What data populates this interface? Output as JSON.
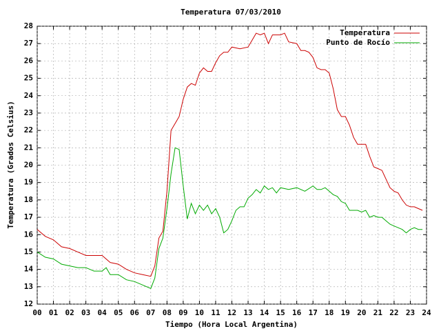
{
  "chart_data": {
    "type": "line",
    "title": "Temperatura 07/03/2010",
    "x_label": "Tiempo (Hora Local Argentina)",
    "y_label": "Temperatura (Grados Celsius)",
    "xlim": [
      0,
      24
    ],
    "ylim": [
      12,
      28
    ],
    "grid": true,
    "legend": "top-right",
    "xticks": [
      {
        "value": 0,
        "label": "00"
      },
      {
        "value": 1,
        "label": "01"
      },
      {
        "value": 2,
        "label": "02"
      },
      {
        "value": 3,
        "label": "03"
      },
      {
        "value": 4,
        "label": "04"
      },
      {
        "value": 5,
        "label": "05"
      },
      {
        "value": 6,
        "label": "06"
      },
      {
        "value": 7,
        "label": "07"
      },
      {
        "value": 8,
        "label": "08"
      },
      {
        "value": 9,
        "label": "09"
      },
      10,
      11,
      12,
      13,
      14,
      15,
      16,
      17,
      18,
      19,
      20,
      21,
      22,
      23,
      24
    ],
    "yticks": [
      12,
      13,
      14,
      15,
      16,
      17,
      18,
      19,
      20,
      21,
      22,
      23,
      24,
      25,
      26,
      27,
      28
    ],
    "series": [
      {
        "name": "Temperatura",
        "color": "#cc0000",
        "x": [
          0,
          0.5,
          1,
          1.5,
          2,
          2.5,
          3,
          3.5,
          4,
          4.5,
          5,
          5.5,
          6,
          6.5,
          7,
          7.25,
          7.5,
          7.75,
          8,
          8.25,
          8.5,
          8.75,
          9,
          9.25,
          9.5,
          9.75,
          10,
          10.25,
          10.5,
          10.75,
          11,
          11.25,
          11.5,
          11.75,
          12,
          12.5,
          13,
          13.25,
          13.5,
          13.75,
          14,
          14.25,
          14.5,
          14.75,
          15,
          15.25,
          15.5,
          16,
          16.25,
          16.5,
          16.75,
          17,
          17.25,
          17.5,
          17.75,
          18,
          18.25,
          18.5,
          18.75,
          19,
          19.25,
          19.5,
          19.75,
          20,
          20.25,
          20.5,
          20.75,
          21,
          21.25,
          21.5,
          21.75,
          22,
          22.25,
          22.5,
          22.75,
          23,
          23.25,
          23.5,
          23.75
        ],
        "values": [
          16.3,
          15.9,
          15.7,
          15.3,
          15.2,
          15.0,
          14.8,
          14.8,
          14.8,
          14.4,
          14.3,
          14.0,
          13.8,
          13.7,
          13.6,
          14.2,
          15.8,
          16.2,
          18.5,
          22.0,
          22.4,
          22.8,
          23.8,
          24.5,
          24.7,
          24.6,
          25.3,
          25.6,
          25.4,
          25.4,
          25.9,
          26.3,
          26.5,
          26.5,
          26.8,
          26.7,
          26.8,
          27.2,
          27.6,
          27.5,
          27.6,
          27.0,
          27.5,
          27.5,
          27.5,
          27.6,
          27.1,
          27.0,
          26.6,
          26.6,
          26.5,
          26.2,
          25.6,
          25.5,
          25.5,
          25.3,
          24.4,
          23.2,
          22.8,
          22.8,
          22.3,
          21.6,
          21.2,
          21.2,
          21.2,
          20.5,
          19.9,
          19.8,
          19.7,
          19.2,
          18.7,
          18.5,
          18.4,
          18.0,
          17.7,
          17.6,
          17.6,
          17.5,
          17.4
        ]
      },
      {
        "name": "Punto de Rocío",
        "color": "#00aa00",
        "x": [
          0,
          0.5,
          1,
          1.5,
          2,
          2.5,
          3,
          3.5,
          4,
          4.25,
          4.5,
          5,
          5.5,
          6,
          6.5,
          7,
          7.25,
          7.5,
          7.75,
          8,
          8.25,
          8.5,
          8.75,
          9,
          9.25,
          9.5,
          9.75,
          10,
          10.25,
          10.5,
          10.75,
          11,
          11.25,
          11.5,
          11.75,
          12,
          12.25,
          12.5,
          12.75,
          13,
          13.25,
          13.5,
          13.75,
          14,
          14.25,
          14.5,
          14.75,
          15,
          15.5,
          16,
          16.5,
          17,
          17.25,
          17.5,
          17.75,
          18,
          18.25,
          18.5,
          18.75,
          19,
          19.25,
          19.5,
          19.75,
          20,
          20.25,
          20.5,
          20.75,
          21,
          21.25,
          21.5,
          21.75,
          22,
          22.25,
          22.5,
          22.75,
          23,
          23.25,
          23.5,
          23.75
        ],
        "values": [
          15.0,
          14.7,
          14.6,
          14.3,
          14.2,
          14.1,
          14.1,
          13.9,
          13.9,
          14.1,
          13.7,
          13.7,
          13.4,
          13.3,
          13.1,
          12.9,
          13.5,
          15.2,
          15.8,
          17.5,
          19.5,
          21.0,
          20.9,
          18.8,
          16.9,
          17.8,
          17.2,
          17.7,
          17.4,
          17.7,
          17.2,
          17.5,
          17.0,
          16.1,
          16.3,
          16.8,
          17.4,
          17.6,
          17.6,
          18.1,
          18.3,
          18.6,
          18.4,
          18.8,
          18.6,
          18.7,
          18.4,
          18.7,
          18.6,
          18.7,
          18.5,
          18.8,
          18.6,
          18.6,
          18.7,
          18.5,
          18.3,
          18.2,
          17.9,
          17.8,
          17.4,
          17.4,
          17.4,
          17.3,
          17.4,
          17.0,
          17.1,
          17.0,
          17.0,
          16.8,
          16.6,
          16.5,
          16.4,
          16.3,
          16.1,
          16.3,
          16.4,
          16.3,
          16.3
        ]
      }
    ]
  }
}
